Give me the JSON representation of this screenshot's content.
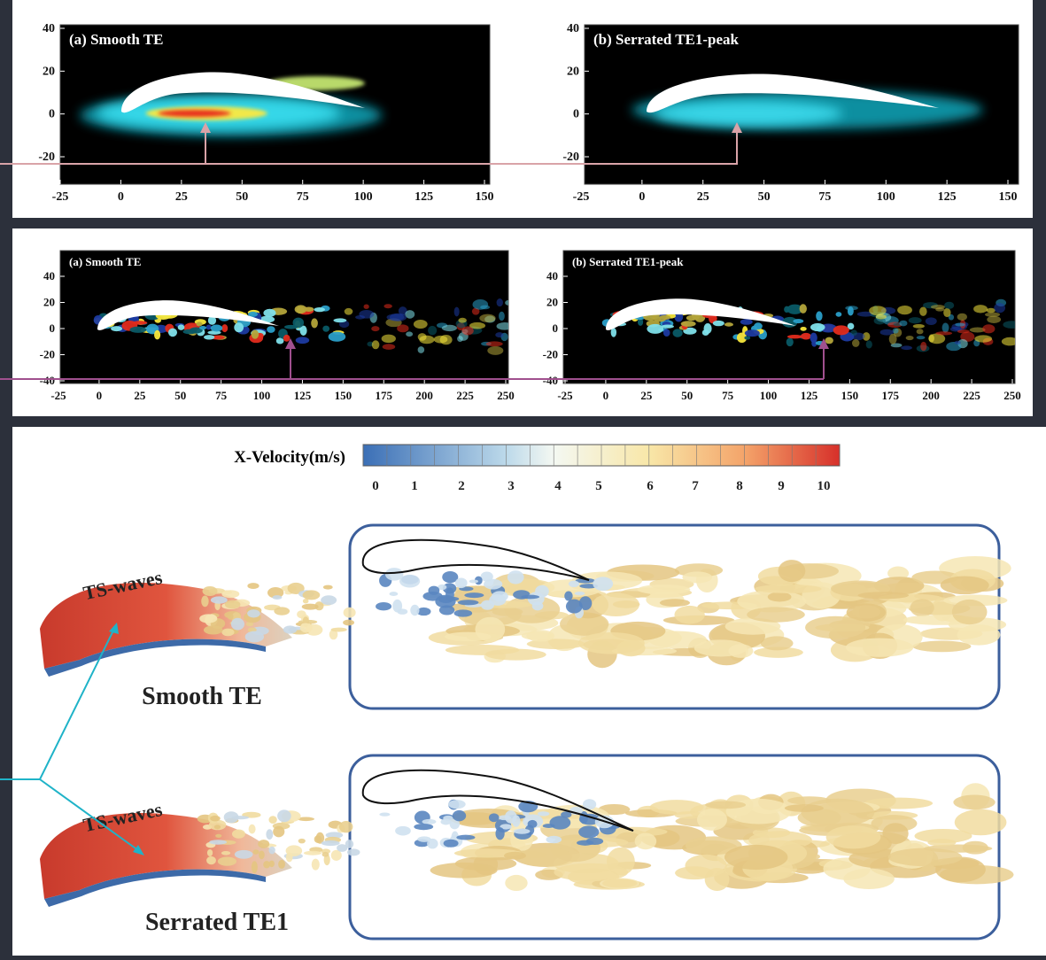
{
  "top_row": {
    "panels": [
      {
        "title": "(a) Smooth TE",
        "yticks": [
          40,
          20,
          0,
          -20
        ],
        "xticks": [
          -25,
          0,
          25,
          50,
          75,
          100,
          125,
          150
        ]
      },
      {
        "title": "(b) Serrated TE1-peak",
        "yticks": [
          40,
          20,
          0,
          -20
        ],
        "xticks": [
          -25,
          0,
          25,
          50,
          75,
          100,
          125,
          150
        ]
      }
    ]
  },
  "middle_row": {
    "panels": [
      {
        "title": "(a) Smooth TE",
        "yticks": [
          40,
          20,
          0,
          -20,
          -40
        ],
        "xticks": [
          -25,
          0,
          25,
          50,
          75,
          100,
          125,
          150,
          175,
          200,
          225,
          250
        ]
      },
      {
        "title": "(b) Serrated TE1-peak",
        "yticks": [
          40,
          20,
          0,
          -20,
          -40
        ],
        "xticks": [
          -25,
          0,
          25,
          50,
          75,
          100,
          125,
          150,
          175,
          200,
          225,
          250
        ]
      }
    ]
  },
  "bottom": {
    "colorbar": {
      "title": "X-Velocity(m/s)",
      "labels": [
        0,
        1,
        2,
        3,
        4,
        5,
        6,
        7,
        8,
        9,
        10
      ]
    },
    "cases": [
      {
        "wave_label": "TS-waves",
        "name": "Smooth TE"
      },
      {
        "wave_label": "TS-waves",
        "name": "Serrated TE1"
      }
    ]
  }
}
